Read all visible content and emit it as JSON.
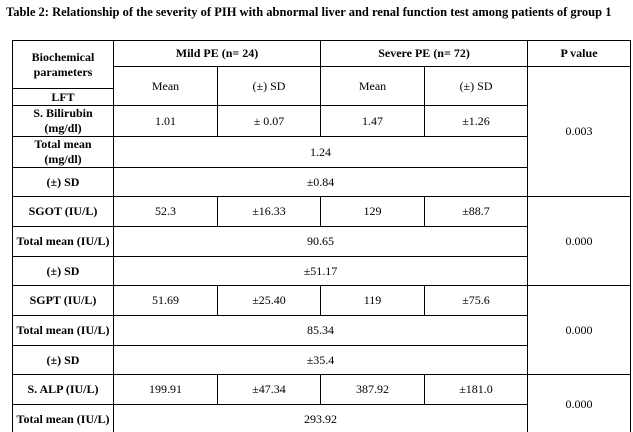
{
  "title": "Table 2: Relationship of the severity of PIH with abnormal liver and renal function test among patients of group 1",
  "table": {
    "header": {
      "parameter": "Biochemical parameters",
      "mild": "Mild PE (n= 24)",
      "severe": "Severe PE (n= 72)",
      "p": "P value"
    },
    "subheader": [
      "Mean",
      "(±) SD",
      "Mean",
      "(±) SD"
    ],
    "section": "LFT",
    "groups": [
      {
        "name": "S. Bilirubin (mg/dl)",
        "values": [
          "1.01",
          "± 0.07",
          "1.47",
          "±1.26"
        ],
        "total_label": "Total mean (mg/dl)",
        "total": "1.24",
        "sd_label": "(±) SD",
        "sd": "±0.84",
        "p": "0.003"
      },
      {
        "name": "SGOT (IU/L)",
        "values": [
          "52.3",
          "±16.33",
          "129",
          "±88.7"
        ],
        "total_label": "Total mean (IU/L)",
        "total": "90.65",
        "sd_label": "(±) SD",
        "sd": "±51.17",
        "p": "0.000"
      },
      {
        "name": "SGPT (IU/L)",
        "values": [
          "51.69",
          "±25.40",
          "119",
          "±75.6"
        ],
        "total_label": "Total mean (IU/L)",
        "total": "85.34",
        "sd_label": "(±) SD",
        "sd": "±35.4",
        "p": "0.000"
      },
      {
        "name": "S. ALP (IU/L)",
        "values": [
          "199.91",
          "±47.34",
          "387.92",
          "±181.0"
        ],
        "total_label": "Total mean (IU/L)",
        "total": "293.92",
        "p": "0.000"
      }
    ]
  }
}
